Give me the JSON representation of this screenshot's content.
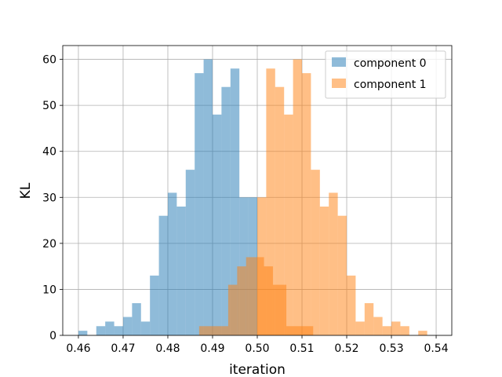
{
  "chart_data": {
    "type": "bar",
    "subtype": "histogram",
    "title": "",
    "xlabel": "iteration",
    "ylabel": "KL",
    "xlim": [
      0.4565,
      0.5435
    ],
    "ylim": [
      0,
      63
    ],
    "xticks": [
      "0.46",
      "0.47",
      "0.48",
      "0.49",
      "0.50",
      "0.51",
      "0.52",
      "0.53",
      "0.54"
    ],
    "yticks": [
      "0",
      "10",
      "20",
      "30",
      "40",
      "50",
      "60"
    ],
    "xtick_values": [
      0.46,
      0.47,
      0.48,
      0.49,
      0.5,
      0.51,
      0.52,
      0.53,
      0.54
    ],
    "ytick_values": [
      0,
      10,
      20,
      30,
      40,
      50,
      60
    ],
    "grid": true,
    "legend_position": "top-right",
    "alpha": 0.5,
    "series": [
      {
        "name": "component 0",
        "color": "#1f77b4",
        "bin_edges": [
          0.46,
          0.462,
          0.464,
          0.466,
          0.468,
          0.47,
          0.472,
          0.474,
          0.476,
          0.478,
          0.48,
          0.482,
          0.484,
          0.486,
          0.488,
          0.49,
          0.492,
          0.494,
          0.496,
          0.498,
          0.5
        ],
        "counts": [
          1,
          0,
          2,
          3,
          2,
          4,
          7,
          3,
          13,
          26,
          31,
          28,
          36,
          57,
          60,
          48,
          54,
          58,
          30,
          30
        ]
      },
      {
        "name": "component 1",
        "color": "#ff7f0e",
        "bin_edges": [
          0.5,
          0.502,
          0.504,
          0.506,
          0.508,
          0.51,
          0.512,
          0.514,
          0.516,
          0.518,
          0.52,
          0.522,
          0.524,
          0.526,
          0.528,
          0.53,
          0.532,
          0.534,
          0.536,
          0.538,
          0.54
        ],
        "counts": [
          30,
          58,
          54,
          48,
          60,
          57,
          36,
          28,
          31,
          26,
          13,
          3,
          7,
          4,
          2,
          3,
          2,
          0,
          1,
          0
        ]
      },
      {
        "name": "",
        "color": "#ff7f0e",
        "bin_edges": [
          0.487,
          0.4935,
          0.4955,
          0.4975,
          0.4995,
          0.5015,
          0.5035,
          0.5065,
          0.5125
        ],
        "counts": [
          2,
          11,
          15,
          17,
          17,
          15,
          11,
          2
        ]
      }
    ]
  }
}
